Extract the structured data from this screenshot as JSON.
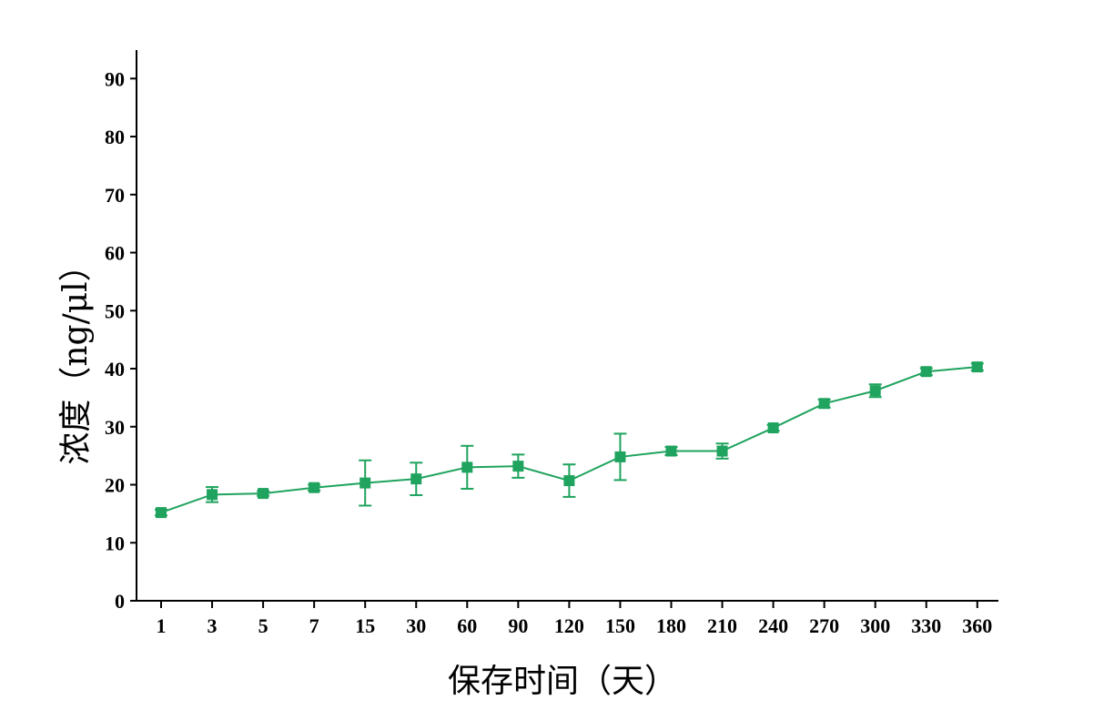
{
  "chart_data": {
    "type": "line",
    "xlabel": "保存时间（天）",
    "ylabel": "浓度（ng/μl）",
    "categories": [
      "1",
      "3",
      "5",
      "7",
      "15",
      "30",
      "60",
      "90",
      "120",
      "150",
      "180",
      "210",
      "240",
      "270",
      "300",
      "330",
      "360"
    ],
    "ylim": [
      0,
      90
    ],
    "yticks": [
      0,
      10,
      20,
      30,
      40,
      50,
      60,
      70,
      80,
      90
    ],
    "grid": false,
    "series": [
      {
        "values": [
          15.2,
          18.3,
          18.5,
          19.5,
          20.3,
          21.0,
          23.0,
          23.2,
          20.7,
          24.8,
          25.8,
          25.8,
          29.8,
          34.0,
          36.2,
          39.5,
          40.3
        ],
        "errors": [
          0.5,
          1.3,
          0.4,
          0.5,
          3.9,
          2.8,
          3.7,
          2.0,
          2.8,
          4.0,
          0.7,
          1.3,
          0.5,
          0.7,
          1.1,
          0.6,
          0.6
        ]
      }
    ],
    "colors": {
      "series": "#1fa35e",
      "axis": "#000000"
    }
  }
}
